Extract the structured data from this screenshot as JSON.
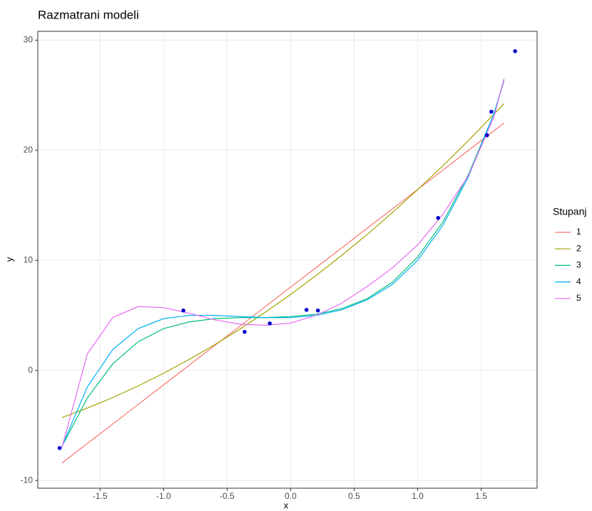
{
  "chart_data": {
    "type": "line",
    "title": "Razmatrani modeli",
    "x_label": "x",
    "y_label": "y",
    "legend_title": "Stupanj",
    "legend_position": "right",
    "grid": true,
    "xlim": [
      -1.99,
      1.94
    ],
    "ylim": [
      -10.7,
      30.8
    ],
    "xticks": [
      -1.5,
      {
        "value": -1,
        "label": "-1.0"
      },
      -0.5,
      {
        "value": 0,
        "label": "0.0"
      },
      0.5,
      {
        "value": 1,
        "label": "1.0"
      },
      1.5
    ],
    "yticks": [
      -10,
      0,
      10,
      20,
      30
    ],
    "x": [
      -1.8,
      -1.6,
      -1.4,
      -1.2,
      -1.0,
      -0.8,
      -0.6,
      -0.4,
      -0.2,
      0,
      0.2,
      0.4,
      0.6,
      0.8,
      1.0,
      1.2,
      1.4,
      1.6,
      1.68
    ],
    "series": [
      {
        "name": "1",
        "color": "#F8766D",
        "values": [
          -8.42,
          -6.64,
          -4.87,
          -3.09,
          -1.32,
          0.46,
          2.24,
          4.01,
          5.79,
          7.56,
          9.34,
          11.11,
          12.89,
          14.66,
          16.44,
          18.21,
          19.99,
          21.76,
          22.47
        ]
      },
      {
        "name": "2",
        "color": "#A3A500",
        "values": [
          -4.29,
          -3.42,
          -2.47,
          -1.41,
          -0.26,
          0.99,
          2.32,
          3.75,
          5.28,
          6.9,
          8.62,
          10.43,
          12.32,
          14.33,
          16.42,
          18.61,
          20.89,
          23.26,
          24.24
        ]
      },
      {
        "name": "3",
        "color": "#00BF7D",
        "values": [
          -6.9,
          -2.5,
          0.6,
          2.6,
          3.8,
          4.4,
          4.7,
          4.8,
          4.8,
          4.9,
          5.1,
          5.6,
          6.5,
          8.0,
          10.3,
          13.5,
          17.8,
          23.3,
          26.3
        ]
      },
      {
        "name": "4",
        "color": "#00B0F6",
        "values": [
          -6.9,
          -1.5,
          1.9,
          3.8,
          4.7,
          5.0,
          5.0,
          4.9,
          4.8,
          4.8,
          5.0,
          5.5,
          6.4,
          7.8,
          10.0,
          13.2,
          17.6,
          23.3,
          26.4
        ]
      },
      {
        "name": "5",
        "color": "#E76BF3",
        "values": [
          -7.0,
          1.5,
          4.8,
          5.8,
          5.7,
          5.2,
          4.6,
          4.2,
          4.1,
          4.3,
          5.0,
          6.1,
          7.6,
          9.3,
          11.4,
          14.2,
          17.7,
          23.0,
          26.5
        ]
      }
    ],
    "points": {
      "color": "#0000CD",
      "x": [
        -1.818,
        -0.844,
        -0.362,
        -0.164,
        0.125,
        0.215,
        1.161,
        1.546,
        1.58,
        1.767
      ],
      "values": [
        -7.05,
        5.44,
        3.5,
        4.27,
        5.5,
        5.44,
        13.85,
        21.36,
        23.5,
        29.0
      ]
    }
  }
}
